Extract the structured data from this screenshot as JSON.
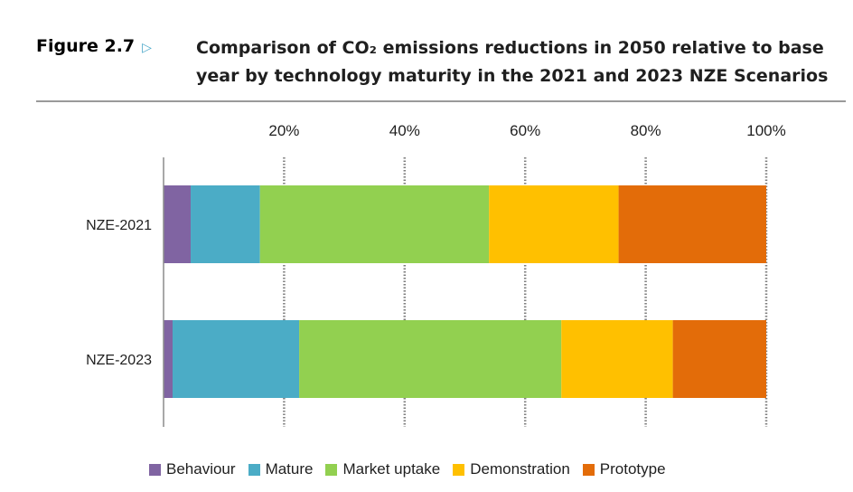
{
  "figure": {
    "label": "Figure 2.7",
    "title": "Comparison of CO₂ emissions reductions in 2050 relative to base year by technology maturity in the 2021 and 2023 NZE Scenarios"
  },
  "chart_data": {
    "type": "bar",
    "orientation": "horizontal",
    "stacked": true,
    "categories": [
      "NZE-2021",
      "NZE-2023"
    ],
    "series": [
      {
        "name": "Behaviour",
        "color": "#8064a2",
        "values": [
          4.5,
          1.5
        ]
      },
      {
        "name": "Mature",
        "color": "#4bacc6",
        "values": [
          11.5,
          21
        ]
      },
      {
        "name": "Market uptake",
        "color": "#92d050",
        "values": [
          38,
          43.5
        ]
      },
      {
        "name": "Demonstration",
        "color": "#ffc000",
        "values": [
          21.5,
          18.5
        ]
      },
      {
        "name": "Prototype",
        "color": "#e36c09",
        "values": [
          24.5,
          15.5
        ]
      }
    ],
    "x_ticks": [
      "20%",
      "40%",
      "60%",
      "80%",
      "100%"
    ],
    "x_tick_values": [
      20,
      40,
      60,
      80,
      100
    ],
    "xlim": [
      0,
      100
    ],
    "grid": "vertical dotted",
    "legend_position": "bottom"
  }
}
